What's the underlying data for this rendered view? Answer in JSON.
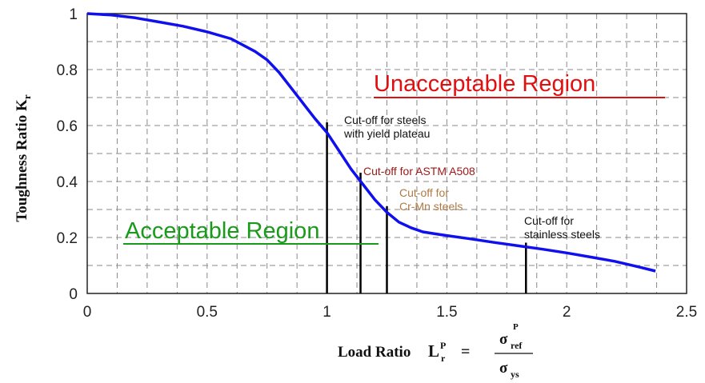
{
  "colors": {
    "curve": "#1010ee",
    "grid": "#8a8a8a",
    "cutoff_line": "#000000",
    "unacceptable": "#e01010",
    "acceptable": "#1a9a1a",
    "astm": "#a01818",
    "crmn": "#b07a45",
    "black_text": "#111111"
  },
  "chart_data": {
    "type": "line",
    "xlabel": {
      "main": "Load Ratio",
      "L": "L",
      "sub": "r",
      "sup": "P",
      "frac_num": "σ",
      "frac_num_sub": "ref",
      "frac_num_sup": "P",
      "frac_den": "σ",
      "frac_den_sub": "ys",
      "eq": "="
    },
    "ylabel": {
      "main": "Toughness Ratio K",
      "sub": "r"
    },
    "xlim": [
      0,
      2.5
    ],
    "ylim": [
      0,
      1
    ],
    "x_ticks": [
      0,
      0.5,
      1,
      1.5,
      2,
      2.5
    ],
    "y_ticks": [
      0,
      0.2,
      0.4,
      0.6,
      0.8,
      1
    ],
    "x_tick_labels": [
      "0",
      "0.5",
      "1",
      "1.5",
      "2",
      "2.5"
    ],
    "y_tick_labels": [
      "0",
      "0.2",
      "0.4",
      "0.6",
      "0.8",
      "1"
    ],
    "grid": true,
    "series": [
      {
        "x": [
          0,
          0.1,
          0.2,
          0.3,
          0.4,
          0.5,
          0.6,
          0.7,
          0.75,
          0.8,
          0.85,
          0.9,
          0.95,
          1.0,
          1.05,
          1.1,
          1.15,
          1.2,
          1.25,
          1.3,
          1.35,
          1.4,
          1.45,
          1.5,
          1.6,
          1.7,
          1.8,
          1.9,
          2.0,
          2.1,
          2.2,
          2.3,
          2.37
        ],
        "y": [
          1.0,
          0.995,
          0.985,
          0.97,
          0.955,
          0.935,
          0.91,
          0.865,
          0.835,
          0.79,
          0.735,
          0.68,
          0.625,
          0.575,
          0.51,
          0.445,
          0.39,
          0.335,
          0.29,
          0.255,
          0.235,
          0.22,
          0.213,
          0.207,
          0.195,
          0.182,
          0.17,
          0.158,
          0.145,
          0.13,
          0.115,
          0.095,
          0.08
        ]
      }
    ],
    "cutoffs": [
      {
        "x": 1.0,
        "y": 0.6,
        "lines": [
          "Cut-off for steels",
          "with yield plateau"
        ],
        "color_key": "black_text"
      },
      {
        "x": 1.14,
        "y": 0.42,
        "lines": [
          "Cut-off for ASTM A508"
        ],
        "color_key": "astm"
      },
      {
        "x": 1.25,
        "y": 0.3,
        "lines": [
          "Cut-off for",
          "Cr-Mn steels"
        ],
        "color_key": "crmn"
      },
      {
        "x": 1.83,
        "y": 0.17,
        "lines": [
          "Cut-off for",
          "stainless steels"
        ],
        "color_key": "black_text"
      }
    ],
    "regions": {
      "unacceptable": "Unacceptable Region",
      "acceptable": "Acceptable Region"
    }
  }
}
